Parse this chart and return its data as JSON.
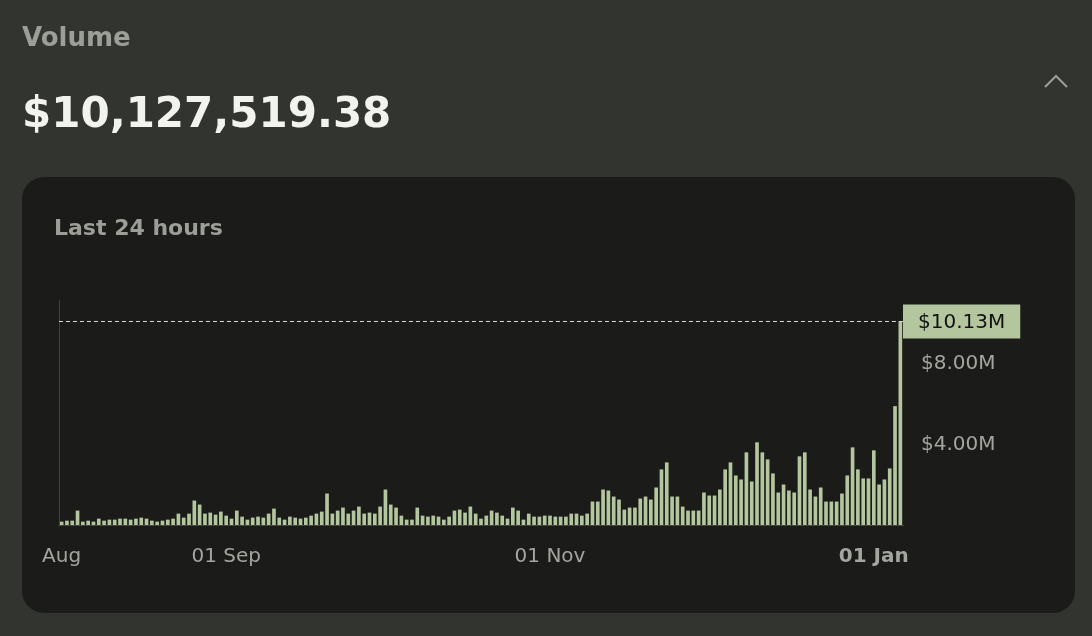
{
  "chart_data": {
    "type": "bar",
    "title": "Volume",
    "subtitle": "$10,127,519.38",
    "annotations": [
      "Last 24 hours"
    ],
    "categories": [
      "Aug",
      null,
      null,
      null,
      null,
      null,
      null,
      null,
      null,
      null,
      null,
      null,
      null,
      null,
      null,
      null,
      null,
      null,
      null,
      null,
      null,
      null,
      null,
      null,
      null,
      null,
      null,
      null,
      null,
      null,
      null,
      "01 Sep",
      null,
      null,
      null,
      null,
      null,
      null,
      null,
      null,
      null,
      null,
      null,
      null,
      null,
      null,
      null,
      null,
      null,
      null,
      null,
      null,
      null,
      null,
      null,
      null,
      null,
      null,
      null,
      null,
      null,
      null,
      null,
      null,
      null,
      null,
      null,
      null,
      null,
      null,
      null,
      null,
      null,
      null,
      null,
      null,
      null,
      null,
      null,
      null,
      null,
      null,
      null,
      null,
      null,
      null,
      null,
      null,
      null,
      null,
      null,
      null,
      "01 Nov",
      null,
      null,
      null,
      null,
      null,
      null,
      null,
      null,
      null,
      null,
      null,
      null,
      null,
      null,
      null,
      null,
      null,
      null,
      null,
      null,
      null,
      null,
      null,
      null,
      null,
      null,
      null,
      null,
      null,
      null,
      null,
      null,
      null,
      null,
      null,
      null,
      null,
      null,
      null,
      null,
      null,
      null,
      null,
      null,
      null,
      null,
      null,
      null,
      null,
      null,
      null,
      null,
      null,
      null,
      null,
      null,
      null,
      null,
      null,
      null,
      "01 Jan",
      null,
      null,
      null,
      null,
      null
    ],
    "values": [
      0.15,
      0.2,
      0.2,
      0.7,
      0.15,
      0.2,
      0.15,
      0.3,
      0.2,
      0.25,
      0.25,
      0.3,
      0.3,
      0.25,
      0.3,
      0.35,
      0.3,
      0.2,
      0.15,
      0.2,
      0.25,
      0.3,
      0.55,
      0.35,
      0.55,
      1.2,
      1.0,
      0.55,
      0.6,
      0.5,
      0.65,
      0.45,
      0.3,
      0.7,
      0.4,
      0.25,
      0.35,
      0.4,
      0.35,
      0.55,
      0.8,
      0.35,
      0.25,
      0.4,
      0.35,
      0.3,
      0.35,
      0.45,
      0.55,
      0.65,
      1.55,
      0.55,
      0.7,
      0.85,
      0.55,
      0.7,
      0.9,
      0.55,
      0.6,
      0.55,
      0.9,
      1.75,
      1.0,
      0.85,
      0.45,
      0.25,
      0.25,
      0.85,
      0.45,
      0.4,
      0.45,
      0.4,
      0.25,
      0.4,
      0.7,
      0.75,
      0.6,
      0.9,
      0.55,
      0.3,
      0.45,
      0.7,
      0.6,
      0.45,
      0.3,
      0.85,
      0.7,
      0.25,
      0.55,
      0.4,
      0.4,
      0.45,
      0.45,
      0.4,
      0.4,
      0.4,
      0.55,
      0.55,
      0.45,
      0.55,
      1.15,
      1.15,
      1.75,
      1.7,
      1.4,
      1.25,
      0.75,
      0.85,
      0.85,
      1.3,
      1.4,
      1.25,
      1.85,
      2.75,
      3.1,
      1.4,
      1.4,
      0.9,
      0.7,
      0.7,
      0.7,
      1.6,
      1.45,
      1.45,
      1.75,
      2.75,
      3.1,
      2.45,
      2.25,
      3.6,
      2.15,
      4.1,
      3.6,
      3.25,
      2.55,
      1.6,
      2.0,
      1.7,
      1.6,
      3.4,
      3.6,
      1.75,
      1.4,
      1.85,
      1.15,
      1.15,
      1.15,
      1.55,
      2.45,
      3.85,
      2.75,
      2.3,
      2.3,
      3.7,
      2.0,
      2.25,
      2.8,
      5.9,
      10.13
    ],
    "color": "#b4c69e",
    "ylim": [
      0,
      11.2
    ],
    "yticks": [
      {
        "value": 4,
        "label": "$4.00M"
      },
      {
        "value": 8,
        "label": "$8.00M"
      }
    ],
    "ref_lines": [
      {
        "axis": "y",
        "value": 10.13,
        "label": "$10.13M",
        "color": "#d8dccf",
        "line_style": "dashed"
      }
    ]
  }
}
